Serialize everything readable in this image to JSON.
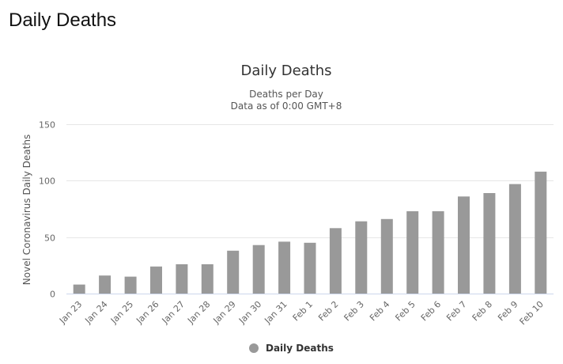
{
  "page": {
    "heading": "Daily Deaths"
  },
  "chart_data": {
    "type": "bar",
    "title": "Daily Deaths",
    "subtitle_lines": [
      "Deaths per Day",
      "Data as of 0:00 GMT+8"
    ],
    "xlabel": "",
    "ylabel": "Novel Coronavirus Daily Deaths",
    "ylim": [
      0,
      150
    ],
    "yticks": [
      0,
      50,
      100,
      150
    ],
    "grid": true,
    "legend_position": "bottom-center",
    "categories": [
      "Jan 23",
      "Jan 24",
      "Jan 25",
      "Jan 26",
      "Jan 27",
      "Jan 28",
      "Jan 29",
      "Jan 30",
      "Jan 31",
      "Feb 1",
      "Feb 2",
      "Feb 3",
      "Feb 4",
      "Feb 5",
      "Feb 6",
      "Feb 7",
      "Feb 8",
      "Feb 9",
      "Feb 10"
    ],
    "series": [
      {
        "name": "Daily Deaths",
        "color": "#999999",
        "values": [
          8,
          16,
          15,
          24,
          26,
          26,
          38,
          43,
          46,
          45,
          58,
          64,
          66,
          73,
          73,
          86,
          89,
          97,
          108
        ]
      }
    ]
  }
}
